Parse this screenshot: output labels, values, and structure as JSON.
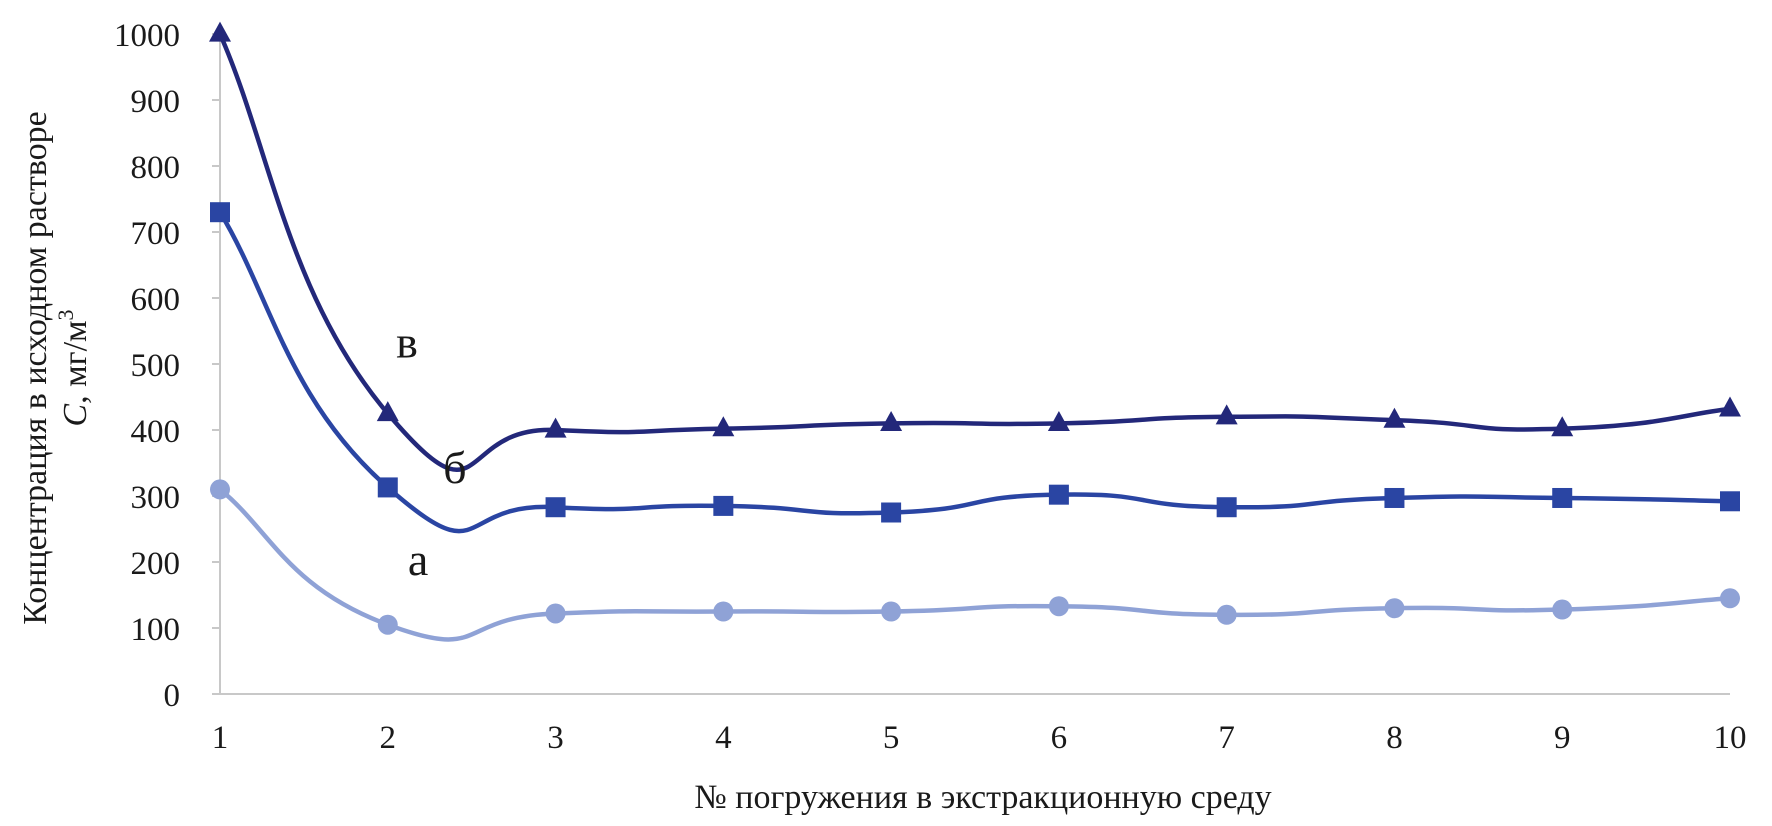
{
  "chart_data": {
    "type": "line",
    "xlabel": "№ погружения в экстракционную среду",
    "ylabel_line1": "Концентрация в исходном растворе",
    "ylabel_symbol": "C",
    "ylabel_unit": ", мг/м",
    "ylabel_sup": "3",
    "x": [
      1,
      2,
      3,
      4,
      5,
      6,
      7,
      8,
      9,
      10
    ],
    "xticks": [
      "1",
      "2",
      "3",
      "4",
      "5",
      "6",
      "7",
      "8",
      "9",
      "10"
    ],
    "yticks": [
      "0",
      "100",
      "200",
      "300",
      "400",
      "500",
      "600",
      "700",
      "800",
      "900",
      "1000"
    ],
    "xlim": [
      1,
      10
    ],
    "ylim": [
      0,
      1000
    ],
    "grid": false,
    "series": [
      {
        "name": "а",
        "marker": "circle",
        "color": "#8fa2d6",
        "values": [
          310,
          105,
          122,
          125,
          125,
          133,
          120,
          130,
          128,
          145
        ]
      },
      {
        "name": "б",
        "marker": "square",
        "color": "#2a45a3",
        "values": [
          730,
          313,
          283,
          285,
          275,
          302,
          283,
          297,
          297,
          292
        ]
      },
      {
        "name": "в",
        "marker": "triangle",
        "color": "#23287a",
        "values": [
          1000,
          425,
          400,
          402,
          410,
          410,
          420,
          415,
          402,
          432
        ]
      }
    ],
    "annotations": [
      {
        "text": "в",
        "x": 2.05,
        "y": 510
      },
      {
        "text": "б",
        "x": 2.33,
        "y": 320
      },
      {
        "text": "а",
        "x": 2.12,
        "y": 180
      }
    ]
  }
}
